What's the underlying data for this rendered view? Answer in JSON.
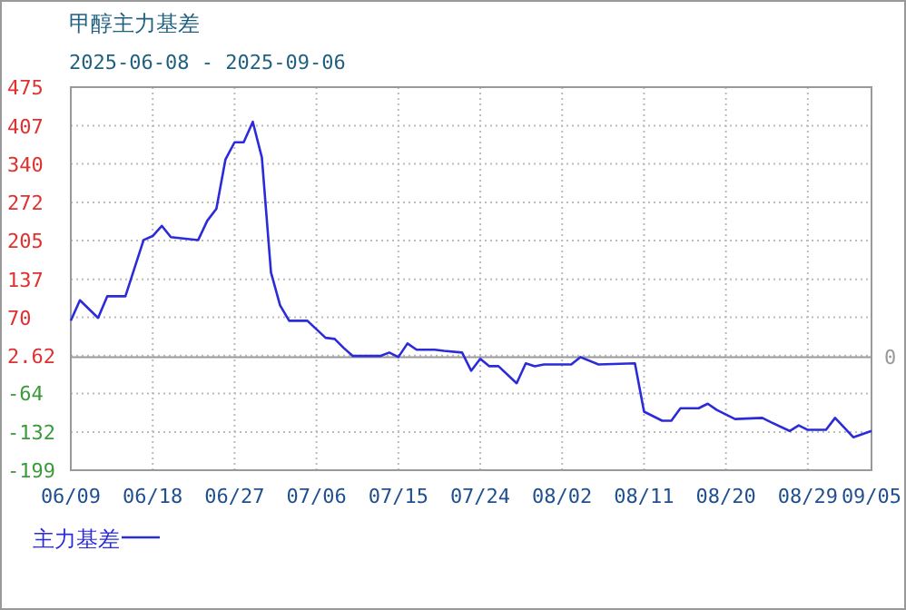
{
  "chart_data": {
    "type": "line",
    "title": "甲醇主力基差",
    "subtitle": "2025-06-08 - 2025-09-06",
    "x": [
      "2025-06-09",
      "2025-06-10",
      "2025-06-12",
      "2025-06-13",
      "2025-06-15",
      "2025-06-17",
      "2025-06-18",
      "2025-06-19",
      "2025-06-20",
      "2025-06-23",
      "2025-06-24",
      "2025-06-25",
      "2025-06-26",
      "2025-06-27",
      "2025-06-28",
      "2025-06-29",
      "2025-06-30",
      "2025-07-01",
      "2025-07-02",
      "2025-07-03",
      "2025-07-05",
      "2025-07-07",
      "2025-07-08",
      "2025-07-09",
      "2025-07-10",
      "2025-07-13",
      "2025-07-14",
      "2025-07-15",
      "2025-07-16",
      "2025-07-17",
      "2025-07-19",
      "2025-07-20",
      "2025-07-22",
      "2025-07-23",
      "2025-07-24",
      "2025-07-25",
      "2025-07-26",
      "2025-07-28",
      "2025-07-29",
      "2025-07-30",
      "2025-07-31",
      "2025-08-03",
      "2025-08-04",
      "2025-08-06",
      "2025-08-10",
      "2025-08-11",
      "2025-08-13",
      "2025-08-14",
      "2025-08-15",
      "2025-08-17",
      "2025-08-18",
      "2025-08-19",
      "2025-08-21",
      "2025-08-24",
      "2025-08-25",
      "2025-08-27",
      "2025-08-28",
      "2025-08-29",
      "2025-08-31",
      "2025-09-01",
      "2025-09-03",
      "2025-09-05"
    ],
    "series": [
      {
        "name": "主力基差",
        "color": "#2b2bd9",
        "values": [
          64,
          100,
          69,
          107,
          107,
          206,
          213,
          231,
          211,
          206,
          240,
          261,
          348,
          378,
          378,
          414,
          351,
          149,
          91,
          64,
          64,
          34,
          32,
          16,
          2,
          2,
          8,
          0,
          24,
          13,
          13,
          11,
          8,
          -24,
          -3,
          -16,
          -16,
          -46,
          -11,
          -16,
          -13,
          -13,
          0,
          -13,
          -11,
          -96,
          -112,
          -112,
          -90,
          -90,
          -82,
          -93,
          -109,
          -107,
          -115,
          -130,
          -120,
          -128,
          -128,
          -107,
          -141,
          -130
        ]
      }
    ],
    "xlim": [
      "2025-06-09",
      "2025-09-05"
    ],
    "xticks": [
      {
        "value": "2025-06-09",
        "label": "06/09"
      },
      {
        "value": "2025-06-18",
        "label": "06/18"
      },
      {
        "value": "2025-06-27",
        "label": "06/27"
      },
      {
        "value": "2025-07-06",
        "label": "07/06"
      },
      {
        "value": "2025-07-15",
        "label": "07/15"
      },
      {
        "value": "2025-07-24",
        "label": "07/24"
      },
      {
        "value": "2025-08-02",
        "label": "08/02"
      },
      {
        "value": "2025-08-11",
        "label": "08/11"
      },
      {
        "value": "2025-08-20",
        "label": "08/20"
      },
      {
        "value": "2025-08-29",
        "label": "08/29"
      },
      {
        "value": "2025-09-05",
        "label": "09/05"
      }
    ],
    "ylim": [
      -199,
      475
    ],
    "yticks": [
      475,
      407,
      340,
      272,
      205,
      137,
      70,
      2.62,
      -64,
      -132,
      -199
    ],
    "ref_lines": [
      {
        "axis": "y",
        "value": 0,
        "label": "0",
        "color": "#999999"
      }
    ],
    "grid": true,
    "legend": "bottom left"
  }
}
